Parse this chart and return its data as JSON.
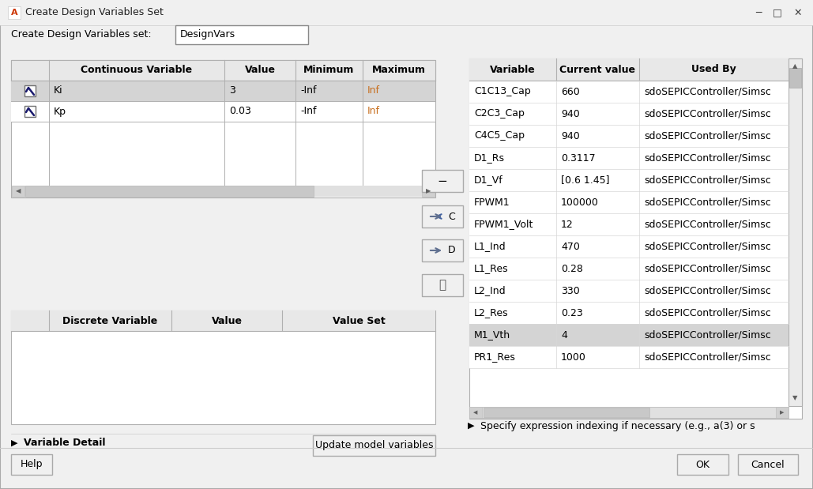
{
  "title": "Create Design Variables Set",
  "bg_color": "#f0f0f0",
  "white": "#ffffff",
  "label_create": "Create Design Variables set:",
  "input_designvars": "DesignVars",
  "cont_table_headers": [
    "",
    "Continuous Variable",
    "Value",
    "Minimum",
    "Maximum"
  ],
  "cont_rows": [
    [
      "Ki",
      "3",
      "-Inf",
      "Inf"
    ],
    [
      "Kp",
      "0.03",
      "-Inf",
      "Inf"
    ]
  ],
  "disc_table_headers": [
    "",
    "Discrete Variable",
    "Value",
    "Value Set"
  ],
  "all_vars_headers": [
    "Variable",
    "Current value",
    "Used By"
  ],
  "all_vars_rows": [
    [
      "C1C13_Cap",
      "660",
      "sdoSEPICController/Simsc"
    ],
    [
      "C2C3_Cap",
      "940",
      "sdoSEPICController/Simsc"
    ],
    [
      "C4C5_Cap",
      "940",
      "sdoSEPICController/Simsc"
    ],
    [
      "D1_Rs",
      "0.3117",
      "sdoSEPICController/Simsc"
    ],
    [
      "D1_Vf",
      "[0.6 1.45]",
      "sdoSEPICController/Simsc"
    ],
    [
      "FPWM1",
      "100000",
      "sdoSEPICController/Simsc"
    ],
    [
      "FPWM1_Volt",
      "12",
      "sdoSEPICController/Simsc"
    ],
    [
      "L1_Ind",
      "470",
      "sdoSEPICController/Simsc"
    ],
    [
      "L1_Res",
      "0.28",
      "sdoSEPICController/Simsc"
    ],
    [
      "L2_Ind",
      "330",
      "sdoSEPICController/Simsc"
    ],
    [
      "L2_Res",
      "0.23",
      "sdoSEPICController/Simsc"
    ],
    [
      "M1_Vth",
      "4",
      "sdoSEPICController/Simsc"
    ],
    [
      "PR1_Res",
      "1000",
      "sdoSEPICController/Simsc"
    ]
  ],
  "selected_cont_row": 0,
  "selected_all_vars_row": 12,
  "update_btn": "Update model variables",
  "variable_detail": "Variable Detail",
  "help_btn": "Help",
  "ok_btn": "OK",
  "cancel_btn": "Cancel",
  "specify_text": "Specify expression indexing if necessary (e.g., a(3) or s",
  "header_color": "#e8e8e8",
  "selected_row_color": "#d4d4d4",
  "selected_last_row_color": "#d4d4d4",
  "orange_inf": "#c87020",
  "border_color": "#b0b0b0",
  "title_bar_color": "#f0f0f0",
  "scrollbar_color": "#c8c8c8",
  "scrollbar_track": "#e8e8e8"
}
